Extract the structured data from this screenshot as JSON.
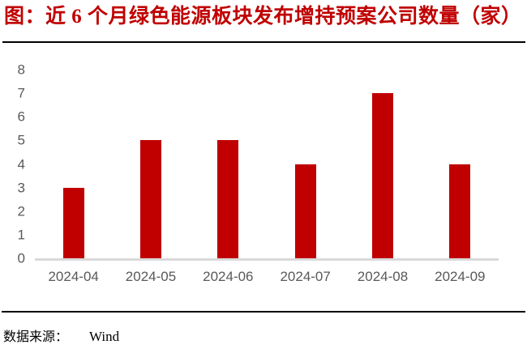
{
  "title": "图：近 6 个月绿色能源板块发布增持预案公司数量（家）",
  "footer": {
    "source_label": "数据来源：",
    "source_value": "Wind"
  },
  "colors": {
    "title_red": "#C00000",
    "bar_red": "#C00000",
    "axis_label_gray": "#595959",
    "axis_line_gray": "#D9D9D9",
    "rule_black": "#000000"
  },
  "chart_data": {
    "type": "bar",
    "title": "近 6 个月绿色能源板块发布增持预案公司数量（家）",
    "categories": [
      "2024-04",
      "2024-05",
      "2024-06",
      "2024-07",
      "2024-08",
      "2024-09"
    ],
    "values": [
      3,
      5,
      5,
      4,
      7,
      4
    ],
    "xlabel": "",
    "ylabel": "",
    "ylim": [
      0,
      8
    ],
    "yticks": [
      0,
      1,
      2,
      3,
      4,
      5,
      6,
      7,
      8
    ],
    "grid": false,
    "legend": false,
    "bar_color": "#C00000"
  }
}
